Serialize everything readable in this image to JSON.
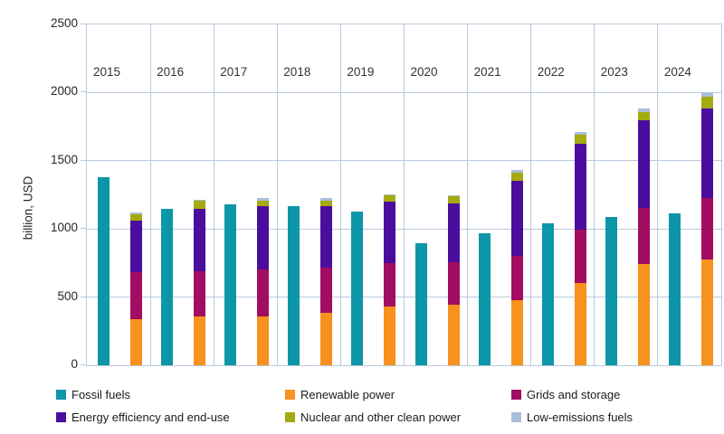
{
  "chart_data": {
    "type": "bar",
    "stacked": true,
    "title": "",
    "xlabel": "",
    "ylabel": "billion, USD",
    "ylim": [
      0,
      2500
    ],
    "yticks": [
      0,
      500,
      1000,
      1500,
      2000,
      2500
    ],
    "grid": "on",
    "legend_position": "bottom",
    "categories": [
      "2015",
      "2016",
      "2017",
      "2018",
      "2019",
      "2020",
      "2021",
      "2022",
      "2023",
      "2024"
    ],
    "series": [
      {
        "name": "Fossil fuels",
        "stack": "fossil",
        "color": "#0d96a7",
        "values": [
          1380,
          1145,
          1180,
          1170,
          1125,
          895,
          965,
          1040,
          1090,
          1115
        ]
      },
      {
        "name": "Renewable power",
        "stack": "clean",
        "color": "#f6921d",
        "values": [
          335,
          355,
          360,
          385,
          430,
          445,
          475,
          605,
          745,
          775
        ]
      },
      {
        "name": "Grids and storage",
        "stack": "clean",
        "color": "#a10d61",
        "values": [
          350,
          335,
          340,
          330,
          320,
          310,
          330,
          390,
          410,
          455
        ]
      },
      {
        "name": "Energy efficiency and end-use",
        "stack": "clean",
        "color": "#4a0d9e",
        "values": [
          375,
          460,
          465,
          450,
          450,
          435,
          550,
          630,
          640,
          655
        ]
      },
      {
        "name": "Nuclear and other clean power",
        "stack": "clean",
        "color": "#a4aa0f",
        "values": [
          45,
          55,
          45,
          45,
          45,
          50,
          60,
          65,
          65,
          85
        ]
      },
      {
        "name": "Low-emissions fuels",
        "stack": "clean",
        "color": "#a8bed8",
        "values": [
          15,
          10,
          15,
          15,
          10,
          10,
          20,
          20,
          25,
          30
        ]
      }
    ]
  }
}
